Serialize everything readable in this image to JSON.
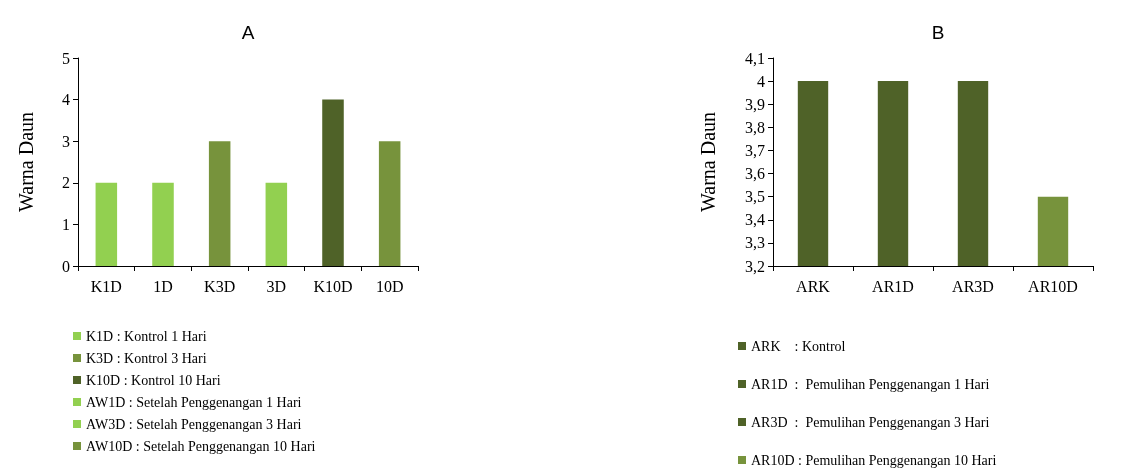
{
  "chart_data": [
    {
      "type": "bar",
      "title": "A",
      "ylabel": "Warna Daun",
      "categories": [
        "K1D",
        "1D",
        "K3D",
        "3D",
        "K10D",
        "10D"
      ],
      "stacked": true,
      "ylim": [
        0,
        5
      ],
      "yticks": [
        0,
        1,
        2,
        3,
        4,
        5
      ],
      "grid": false,
      "legend": "bottom",
      "series": [
        {
          "name": "K1D : Kontrol 1 Hari",
          "color": "#92d050",
          "values": [
            2,
            null,
            null,
            null,
            null,
            null
          ]
        },
        {
          "name": "K3D : Kontrol 3 Hari",
          "color": "#77933c",
          "values": [
            null,
            null,
            3,
            null,
            null,
            null
          ]
        },
        {
          "name": "K10D : Kontrol 10 Hari",
          "color": "#4f6228",
          "values": [
            null,
            null,
            null,
            null,
            4,
            null
          ]
        },
        {
          "name": "AW1D : Setelah Penggenangan 1 Hari",
          "color": "#92d050",
          "values": [
            null,
            2,
            null,
            null,
            null,
            null
          ]
        },
        {
          "name": "AW3D : Setelah Penggenangan 3 Hari",
          "color": "#92d050",
          "values": [
            null,
            null,
            null,
            2,
            null,
            null
          ]
        },
        {
          "name": "AW10D : Setelah Penggenangan 10 Hari",
          "color": "#77933c",
          "values": [
            null,
            null,
            null,
            null,
            null,
            3
          ]
        }
      ]
    },
    {
      "type": "bar",
      "title": "B",
      "ylabel": "Warna Daun",
      "categories": [
        "ARK",
        "AR1D",
        "AR3D",
        "AR10D"
      ],
      "stacked": true,
      "ylim": [
        3.2,
        4.1
      ],
      "yticks": [
        {
          "value": 3.2,
          "label": "3,2"
        },
        {
          "value": 3.3,
          "label": "3,3"
        },
        {
          "value": 3.4,
          "label": "3,4"
        },
        {
          "value": 3.5,
          "label": "3,5"
        },
        {
          "value": 3.6,
          "label": "3,6"
        },
        {
          "value": 3.7,
          "label": "3,7"
        },
        {
          "value": 3.8,
          "label": "3,8"
        },
        {
          "value": 3.9,
          "label": "3,9"
        },
        4,
        {
          "value": 4.1,
          "label": "4,1"
        }
      ],
      "grid": false,
      "legend": "bottom",
      "series": [
        {
          "name": "ARK    : Kontrol",
          "color": "#4f6228",
          "values": [
            4,
            null,
            null,
            null
          ]
        },
        {
          "name": "AR1D  :  Pemulihan Penggenangan 1 Hari",
          "color": "#4f6228",
          "values": [
            null,
            4,
            null,
            null
          ]
        },
        {
          "name": "AR3D  :  Pemulihan Penggenangan 3 Hari",
          "color": "#4f6228",
          "values": [
            null,
            null,
            4,
            null
          ]
        },
        {
          "name": "AR10D : Pemulihan Penggenangan 10 Hari",
          "color": "#77933c",
          "values": [
            null,
            null,
            null,
            3.5
          ]
        }
      ]
    }
  ]
}
